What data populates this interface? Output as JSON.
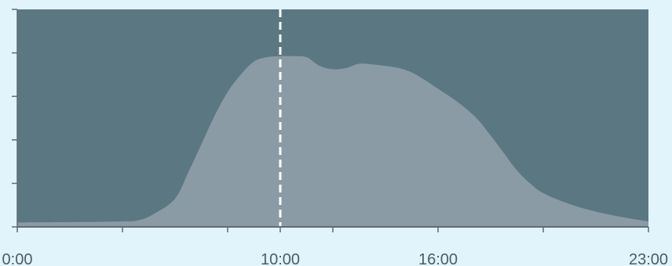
{
  "chart_data": {
    "type": "area",
    "title": "",
    "xlabel": "",
    "ylabel": "",
    "x_ticks": [
      {
        "x": 0,
        "label": "0:00"
      },
      {
        "x": 4,
        "label": ""
      },
      {
        "x": 8,
        "label": ""
      },
      {
        "x": 10,
        "label": "10:00"
      },
      {
        "x": 12,
        "label": ""
      },
      {
        "x": 16,
        "label": "16:00"
      },
      {
        "x": 20,
        "label": ""
      },
      {
        "x": 24,
        "label": "23:00"
      }
    ],
    "y_ticks": [
      0,
      20,
      40,
      60,
      80,
      100
    ],
    "xlim": [
      0,
      24
    ],
    "ylim": [
      0,
      100
    ],
    "current_hour": 10,
    "series": [
      {
        "x": [
          0,
          1,
          2,
          3,
          4,
          4.6,
          5.2,
          6,
          6.5,
          7,
          7.5,
          8,
          8.5,
          9,
          9.5,
          10,
          10.5,
          11,
          11.5,
          12,
          12.5,
          13,
          13.5,
          14,
          14.5,
          15,
          15.5,
          16,
          16.5,
          17,
          17.5,
          18,
          18.5,
          19,
          19.5,
          20,
          21,
          22,
          23,
          24
        ],
        "values": [
          2.0,
          2.1,
          2.2,
          2.3,
          2.5,
          3.0,
          6,
          13,
          25,
          38,
          51,
          62,
          70,
          76,
          78,
          78.5,
          78.5,
          78,
          74,
          72.5,
          73,
          75,
          74.7,
          74,
          73,
          71,
          67.5,
          63.5,
          59.5,
          55,
          49.5,
          42,
          34,
          26,
          20,
          15.5,
          10.5,
          7,
          4.5,
          2.5
        ]
      }
    ],
    "colors": {
      "page_background": "#e1f3fb",
      "plot_background": "#5b7882",
      "area_fill": "#8a9ba6",
      "marker_line": "#ffffff",
      "axis_line": "#5e6c75",
      "tick_label": "#4f5b66"
    },
    "grid": false,
    "legend": "none"
  }
}
